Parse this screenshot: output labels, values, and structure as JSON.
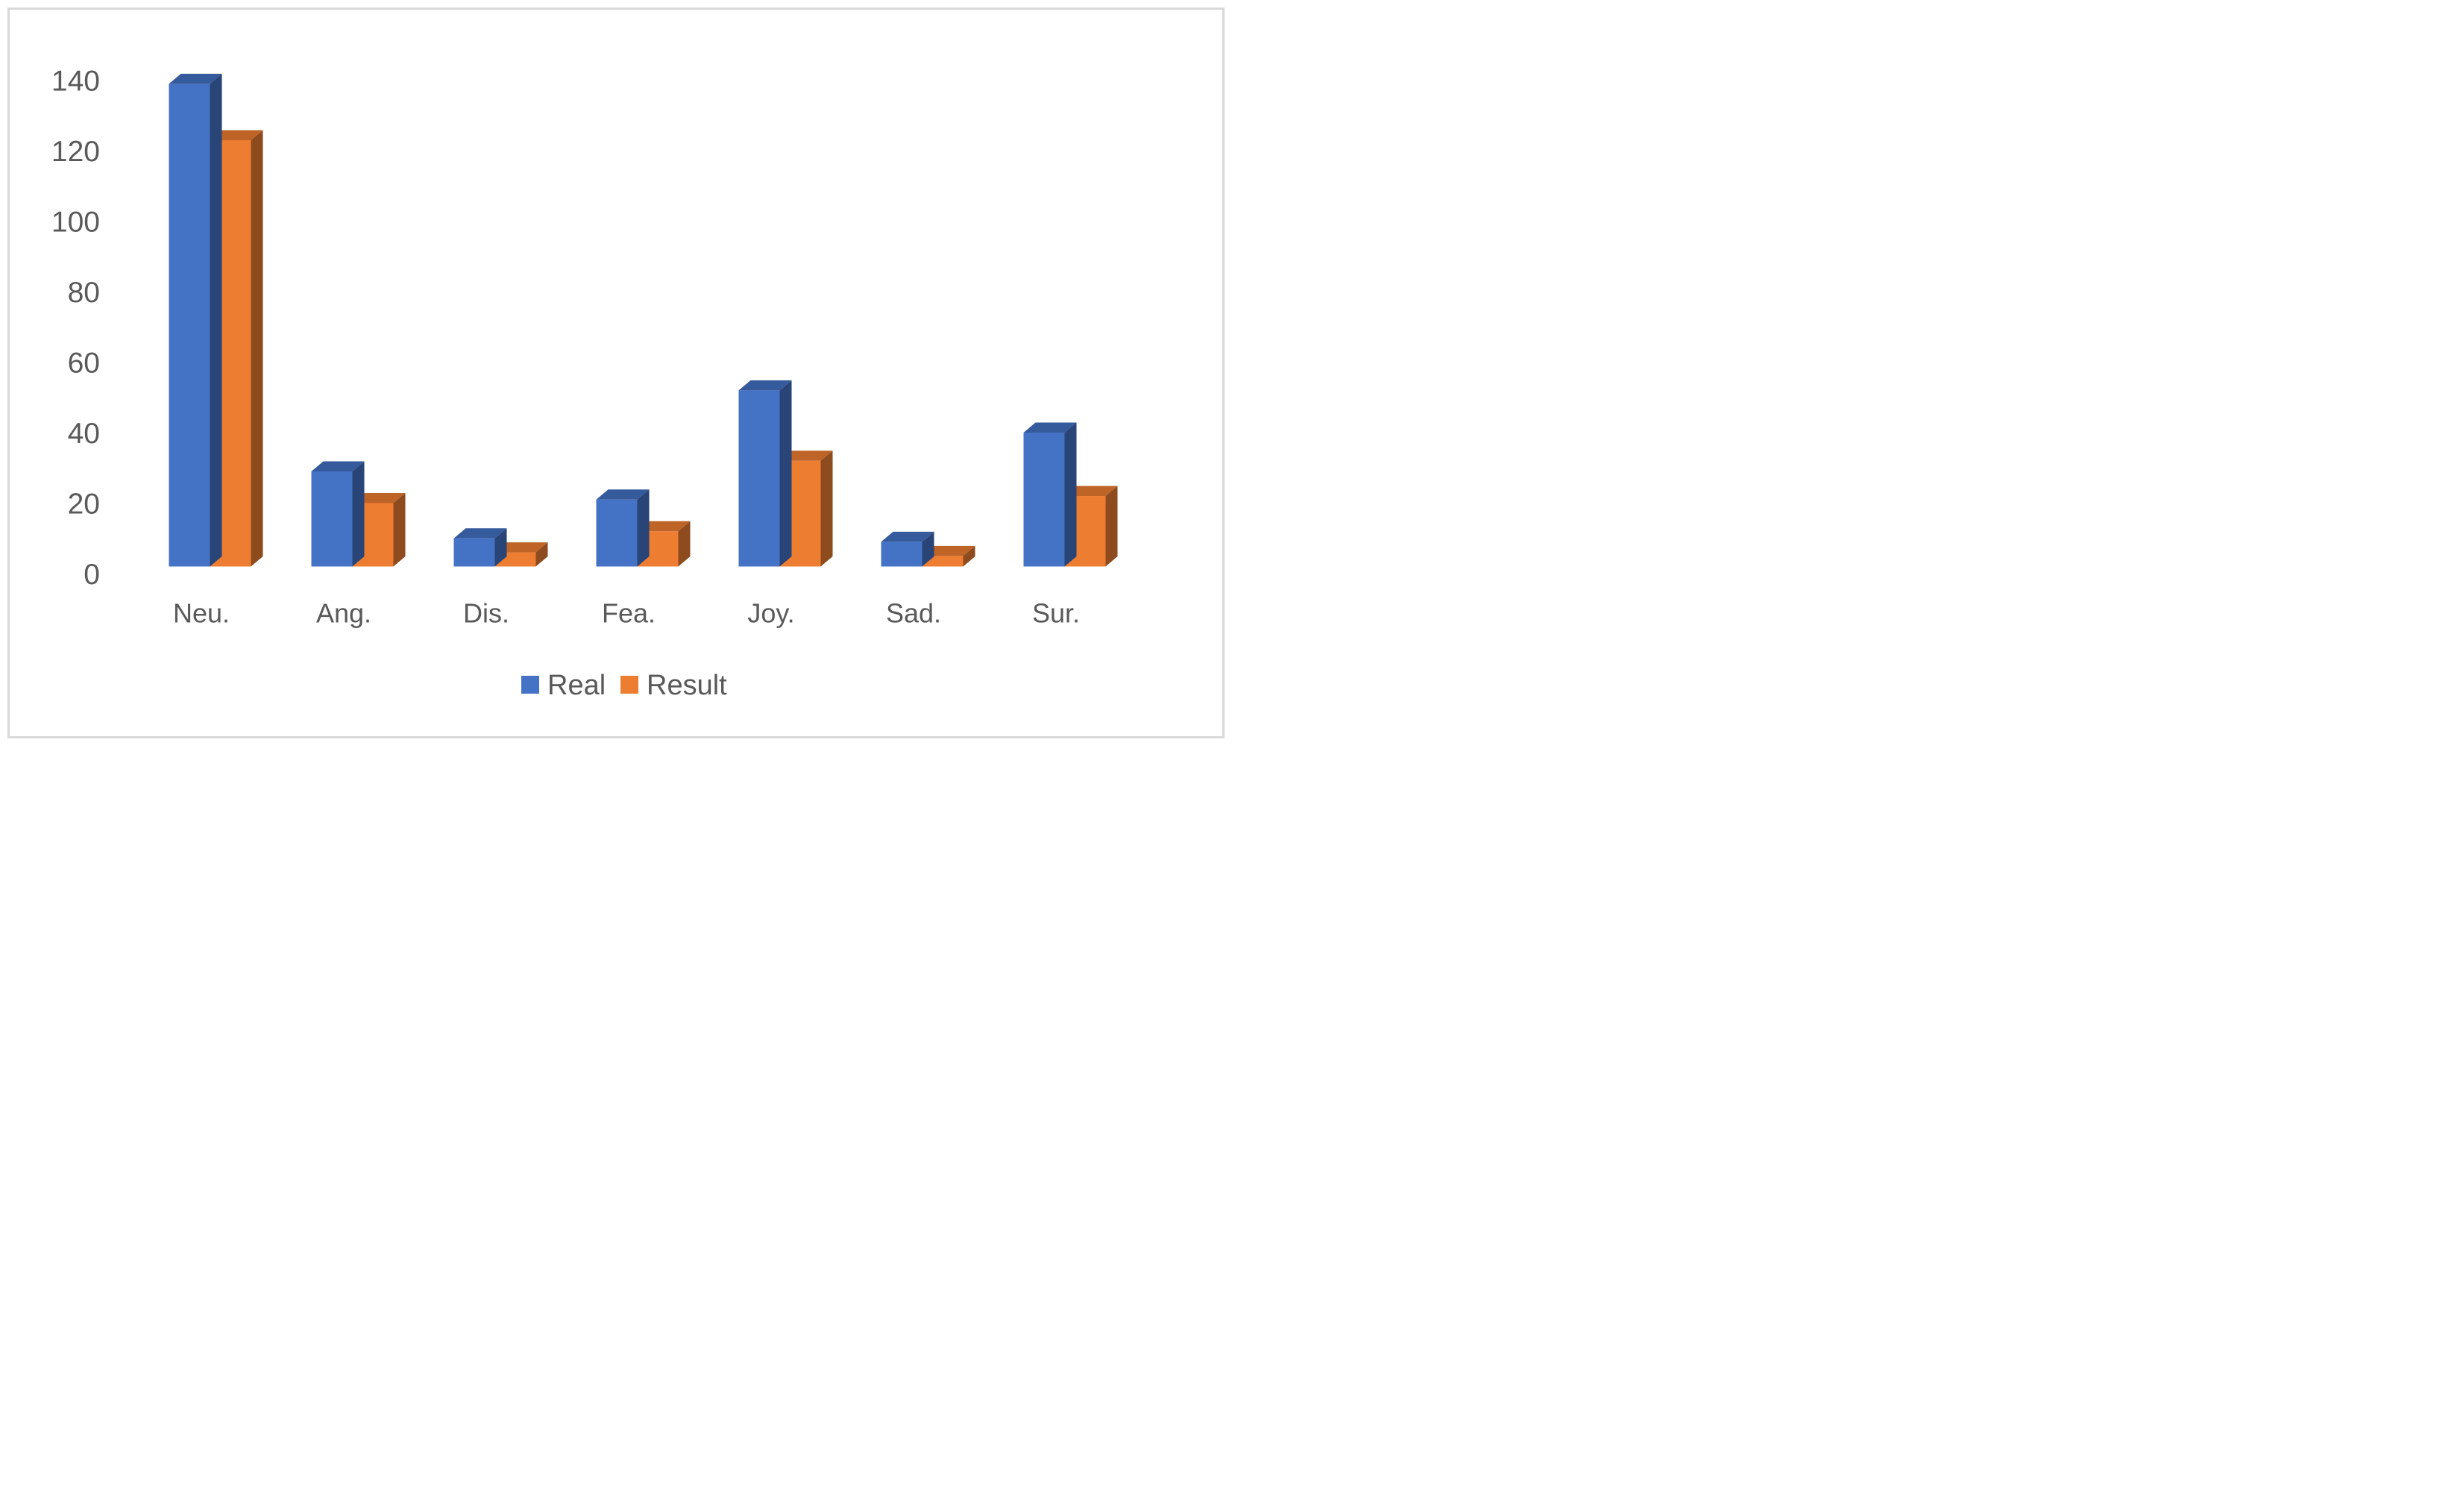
{
  "figure": {
    "background_color": "#ffffff",
    "border_color": "#d9d9d9",
    "axis_text_color": "#595959"
  },
  "chart_data": {
    "type": "bar",
    "style": "3d-clustered-column",
    "title": "",
    "xlabel": "",
    "ylabel": "",
    "categories": [
      "Neu.",
      "Ang.",
      "Dis.",
      "Fea.",
      "Joy.",
      "Sad.",
      "Sur."
    ],
    "series": [
      {
        "name": "Real",
        "color": "#4472c4",
        "color_top": "#365b9d",
        "color_side": "#294476",
        "values": [
          137,
          27,
          8,
          19,
          50,
          7,
          38
        ]
      },
      {
        "name": "Result",
        "color": "#ed7d31",
        "color_top": "#be6427",
        "color_side": "#8e4b1d",
        "values": [
          121,
          18,
          4,
          10,
          30,
          3,
          20
        ]
      }
    ],
    "ylim": [
      0,
      140
    ],
    "ytick_step": 20,
    "yticks": [
      0,
      20,
      40,
      60,
      80,
      100,
      120,
      140
    ],
    "grid": false,
    "legend_position": "bottom"
  }
}
